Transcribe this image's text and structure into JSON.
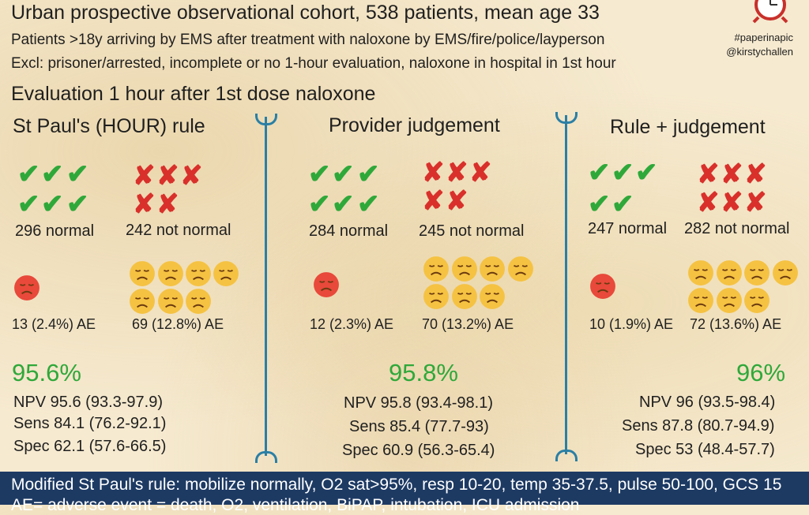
{
  "header": {
    "title": "Urban prospective observational cohort, 538 patients, mean age 33",
    "inclusion": "Patients >18y arriving by EMS after treatment with naloxone by EMS/fire/police/layperson",
    "exclusion": "Excl: prisoner/arrested, incomplete or no 1-hour evaluation, naloxone in hospital in 1st hour",
    "hashtag": "#paperinapic",
    "handle": "@kirstychallen",
    "clock_icon": "alarm-clock-icon"
  },
  "section_heading": "Evaluation 1 hour after 1st dose naloxone",
  "columns": [
    {
      "title": "St Paul's (HOUR) rule",
      "normal_label": "296 normal",
      "not_normal_label": "242 not normal",
      "normal_ae": "13 (2.4%) AE",
      "not_normal_ae": "69 (12.8%) AE",
      "npv_pct": "95.6%",
      "npv": "NPV 95.6 (93.3-97.9)",
      "sens": "Sens 84.1 (76.2-92.1)",
      "spec": "Spec 62.1 (57.6-66.5)"
    },
    {
      "title": "Provider judgement",
      "normal_label": "284 normal",
      "not_normal_label": "245 not normal",
      "normal_ae": "12 (2.3%) AE",
      "not_normal_ae": "70 (13.2%) AE",
      "npv_pct": "95.8%",
      "npv": "NPV 95.8 (93.4-98.1)",
      "sens": "Sens 85.4 (77.7-93)",
      "spec": "Spec 60.9 (56.3-65.4)"
    },
    {
      "title": "Rule + judgement",
      "normal_label": "247 normal",
      "not_normal_label": "282 not normal",
      "normal_ae": "10 (1.9%) AE",
      "not_normal_ae": "72 (13.6%) AE",
      "npv_pct": "96%",
      "npv": "NPV 96 (93.5-98.4)",
      "sens": "Sens 87.8 (80.7-94.9)",
      "spec": "Spec 53 (48.4-57.7)"
    }
  ],
  "footer": {
    "line1": "Modified St Paul's rule: mobilize normally, O2 sat>95%, resp 10-20, temp 35-37.5, pulse 50-100, GCS 15",
    "line2": "AE= adverse event = death, O2, ventilation, BiPAP, intubation, ICU admission"
  },
  "colors": {
    "check": "#2fa83a",
    "cross": "#d9302b",
    "divider": "#2a7fa5",
    "footer_bg": "#1d3a63",
    "sad_face": "#e8493a",
    "neutral_face": "#f5c242"
  },
  "icons": {
    "check": "check-mark-icon",
    "cross": "cross-mark-icon",
    "sad_face": "sad-face-icon",
    "neutral_face": "unhappy-face-icon"
  }
}
